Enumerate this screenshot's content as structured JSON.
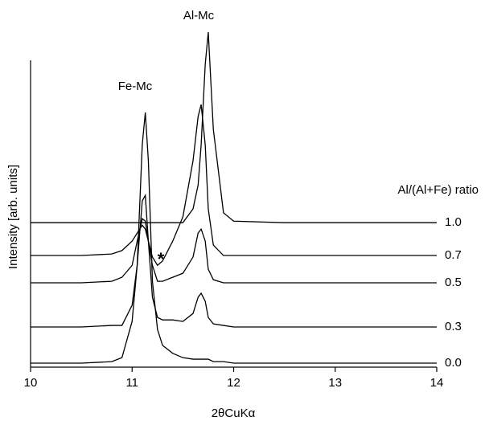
{
  "chart_data": {
    "type": "line",
    "xlabel": "2θCuKα",
    "ylabel": "Intensity [arb. units]",
    "legend_title": "Al/(Al+Fe) ratio",
    "annotations": [
      "Fe-Mc",
      "Al-Mc",
      "*"
    ],
    "x": [
      10,
      10.5,
      10.8,
      10.9,
      11.0,
      11.05,
      11.1,
      11.13,
      11.16,
      11.2,
      11.25,
      11.3,
      11.4,
      11.5,
      11.6,
      11.65,
      11.68,
      11.72,
      11.75,
      11.8,
      11.9,
      12.0,
      12.5,
      13,
      14
    ],
    "xlim": [
      10,
      14
    ],
    "xticks": [
      10,
      11,
      12,
      13,
      14
    ],
    "ylim": [
      0,
      110
    ],
    "series": [
      {
        "name": "1.0",
        "color": "#000000",
        "values": [
          47.1,
          47.1,
          47.1,
          47.1,
          47.1,
          47.1,
          47.1,
          47.1,
          47.1,
          47.1,
          47.1,
          47.1,
          47.1,
          47.1,
          51.6,
          59.4,
          72.5,
          98.7,
          109.2,
          77.5,
          50.3,
          47.6,
          47.1,
          47.1,
          47.1
        ]
      },
      {
        "name": "0.7",
        "color": "#000000",
        "values": [
          36.4,
          36.4,
          36.9,
          38.0,
          41.1,
          43.7,
          46.3,
          45.0,
          41.1,
          35.9,
          33.2,
          34.6,
          41.1,
          49.0,
          67.3,
          81.7,
          85.6,
          72.5,
          51.6,
          39.8,
          36.4,
          36.4,
          36.4,
          36.4,
          36.4
        ]
      },
      {
        "name": "0.5",
        "color": "#000000",
        "values": [
          27.5,
          27.5,
          28.0,
          29.3,
          33.2,
          41.1,
          48.4,
          47.6,
          41.1,
          33.2,
          28.0,
          28.0,
          29.3,
          30.6,
          35.9,
          43.7,
          45.0,
          41.1,
          31.9,
          28.5,
          27.5,
          27.5,
          27.5,
          27.5,
          27.5
        ]
      },
      {
        "name": "0.3",
        "color": "#000000",
        "values": [
          13.1,
          13.1,
          13.6,
          13.6,
          20.2,
          33.2,
          54.2,
          56.0,
          41.1,
          22.8,
          16.2,
          15.4,
          15.4,
          14.9,
          17.5,
          22.8,
          24.1,
          21.5,
          16.2,
          14.1,
          13.6,
          13.1,
          13.1,
          13.1,
          13.1
        ]
      },
      {
        "name": "0.0",
        "color": "#000000",
        "values": [
          1.3,
          1.3,
          1.8,
          3.1,
          14.9,
          33.2,
          72.5,
          83.0,
          67.3,
          28.0,
          12.3,
          7.1,
          4.5,
          3.1,
          2.6,
          2.6,
          2.6,
          2.6,
          2.6,
          1.8,
          1.8,
          1.3,
          1.3,
          1.3,
          1.3
        ]
      }
    ]
  }
}
